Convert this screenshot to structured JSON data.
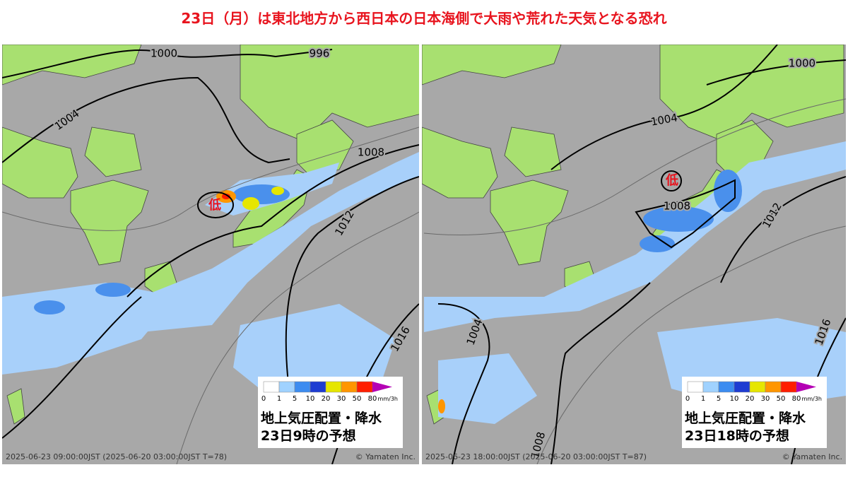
{
  "title": "23日（月）は東北地方から西日本の日本海側で大雨や荒れた天気となる恐れ",
  "panels": [
    {
      "isobar_labels": [
        "1000",
        "996",
        "1004",
        "1008",
        "1012",
        "1016"
      ],
      "low_label": "低",
      "legend": {
        "ticks": [
          "0",
          "1",
          "5",
          "10",
          "20",
          "30",
          "50",
          "80"
        ],
        "unit": "mm/3h",
        "colors": [
          "#ffffff",
          "#a0d2ff",
          "#3c8cf0",
          "#1e3cd2",
          "#e6e600",
          "#ff9600",
          "#ff1e00",
          "#b400b4"
        ]
      },
      "caption": [
        "地上気圧配置・降水",
        "23日9時の予想"
      ],
      "timestamp": "2025-06-23 09:00:00JST (2025-06-20 03:00:00JST T=78)",
      "credit": "© Yamaten Inc."
    },
    {
      "isobar_labels": [
        "1000",
        "1004",
        "1008",
        "1012",
        "1004",
        "1016",
        "1008"
      ],
      "low_label": "低",
      "legend": {
        "ticks": [
          "0",
          "1",
          "5",
          "10",
          "20",
          "30",
          "50",
          "80"
        ],
        "unit": "mm/3h",
        "colors": [
          "#ffffff",
          "#a0d2ff",
          "#3c8cf0",
          "#1e3cd2",
          "#e6e600",
          "#ff9600",
          "#ff1e00",
          "#b400b4"
        ]
      },
      "caption": [
        "地上気圧配置・降水",
        "23日18時の予想"
      ],
      "timestamp": "2025-06-23 18:00:00JST (2025-06-20 03:00:00JST T=87)",
      "credit": "© Yamaten Inc."
    }
  ]
}
